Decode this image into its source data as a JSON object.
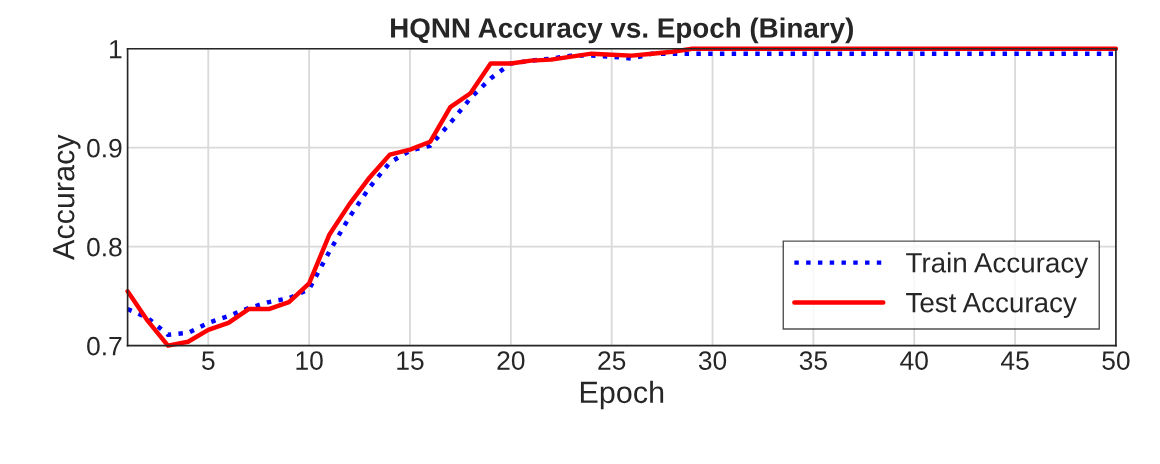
{
  "chart_data": {
    "type": "line",
    "title": "HQNN Accuracy vs. Epoch (Binary)",
    "xlabel": "Epoch",
    "ylabel": "Accuracy",
    "x": [
      1,
      2,
      3,
      4,
      5,
      6,
      7,
      8,
      9,
      10,
      11,
      12,
      13,
      14,
      15,
      16,
      17,
      18,
      19,
      20,
      21,
      22,
      23,
      24,
      25,
      26,
      27,
      28,
      29,
      30,
      31,
      32,
      33,
      34,
      35,
      36,
      37,
      38,
      39,
      40,
      41,
      42,
      43,
      44,
      45,
      46,
      47,
      48,
      49,
      50
    ],
    "series": [
      {
        "name": "Train Accuracy",
        "color": "#0000ff",
        "line_style": "dotted",
        "values": [
          0.737,
          0.728,
          0.711,
          0.713,
          0.723,
          0.73,
          0.738,
          0.744,
          0.748,
          0.757,
          0.795,
          0.83,
          0.86,
          0.885,
          0.897,
          0.902,
          0.925,
          0.95,
          0.97,
          0.985,
          0.988,
          0.99,
          0.993,
          0.993,
          0.992,
          0.99,
          0.995,
          0.995,
          0.995,
          0.995,
          0.995,
          0.995,
          0.995,
          0.995,
          0.995,
          0.995,
          0.995,
          0.995,
          0.995,
          0.995,
          0.995,
          0.995,
          0.995,
          0.995,
          0.995,
          0.995,
          0.995,
          0.995,
          0.995,
          0.995
        ]
      },
      {
        "name": "Test Accuracy",
        "color": "#ff0000",
        "line_style": "solid",
        "values": [
          0.755,
          0.725,
          0.7,
          0.704,
          0.716,
          0.723,
          0.737,
          0.737,
          0.744,
          0.763,
          0.812,
          0.843,
          0.87,
          0.893,
          0.898,
          0.906,
          0.941,
          0.955,
          0.985,
          0.985,
          0.988,
          0.989,
          0.992,
          0.995,
          0.994,
          0.993,
          0.995,
          0.997,
          1,
          1,
          1,
          1,
          1,
          1,
          1,
          1,
          1,
          1,
          1,
          1,
          1,
          1,
          1,
          1,
          1,
          1,
          1,
          1,
          1,
          1
        ]
      }
    ],
    "xlim": [
      1,
      50
    ],
    "xticks": [
      5,
      10,
      15,
      20,
      25,
      30,
      35,
      40,
      45,
      50
    ],
    "ylim": [
      0.7,
      1
    ],
    "yticks": [
      0.7,
      0.8,
      0.9,
      {
        "value": 1,
        "label": "1"
      }
    ],
    "grid": true,
    "legend": "bottom right",
    "marker": "none"
  }
}
